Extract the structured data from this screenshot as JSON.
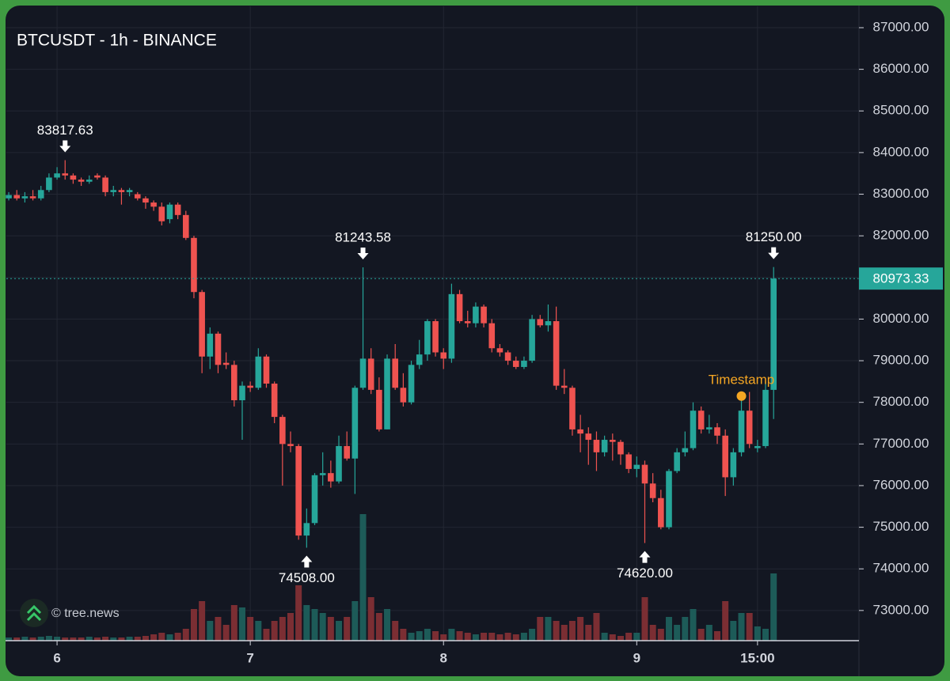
{
  "chart_data": {
    "type": "candlestick",
    "title": "BTCUSDT - 1h - BINANCE",
    "watermark": "© tree.news",
    "x": [
      -6,
      -5,
      -4,
      -3,
      -2,
      -1,
      0,
      1,
      2,
      3,
      4,
      5,
      6,
      7,
      8,
      9,
      10,
      11,
      12,
      13,
      14,
      15,
      16,
      17,
      18,
      19,
      20,
      21,
      22,
      23,
      24,
      25,
      26,
      27,
      28,
      29,
      30,
      31,
      32,
      33,
      34,
      35,
      36,
      37,
      38,
      39,
      40,
      41,
      42,
      43,
      44,
      45,
      46,
      47,
      48,
      49,
      50,
      51,
      52,
      53,
      54,
      55,
      56,
      57,
      58,
      59,
      60,
      61,
      62,
      63,
      64,
      65,
      66,
      67,
      68,
      69,
      70,
      71,
      72,
      73,
      74,
      75,
      76,
      77,
      78,
      79,
      80,
      81,
      82,
      83,
      84,
      85,
      86,
      87,
      88,
      89
    ],
    "open": [
      82900,
      82980,
      82900,
      82950,
      82900,
      83100,
      83400,
      83500,
      83450,
      83350,
      83300,
      83450,
      83400,
      83050,
      83100,
      83050,
      83000,
      82900,
      82800,
      82700,
      82400,
      82750,
      82500,
      81950,
      80650,
      79100,
      79650,
      78950,
      78900,
      78050,
      78400,
      78350,
      79100,
      78450,
      77650,
      77000,
      76950,
      74800,
      75100,
      76250,
      76300,
      76100,
      76950,
      76650,
      78350,
      79050,
      78300,
      77350,
      79050,
      78350,
      78000,
      78900,
      79150,
      79950,
      79200,
      79050,
      80600,
      79950,
      79900,
      80300,
      79900,
      79300,
      79200,
      79000,
      78850,
      79000,
      80000,
      79850,
      79950,
      78400,
      78350,
      77350,
      77250,
      77100,
      76800,
      77100,
      77050,
      76750,
      76400,
      76500,
      76050,
      75700,
      75000,
      76350,
      76800,
      76900,
      77800,
      77350,
      77400,
      77200,
      76200,
      76800,
      77800,
      76900,
      76950,
      78300
    ],
    "high": [
      83050,
      83100,
      83050,
      83100,
      83200,
      83500,
      83650,
      83817.63,
      83500,
      83400,
      83450,
      83500,
      83450,
      83200,
      83150,
      83150,
      83050,
      82950,
      82850,
      82800,
      82800,
      82800,
      82600,
      82000,
      80700,
      79800,
      79700,
      79200,
      79000,
      78500,
      78500,
      79300,
      79150,
      78500,
      77700,
      77300,
      77000,
      75450,
      76300,
      76800,
      76600,
      77200,
      77300,
      78400,
      81243.58,
      79300,
      78600,
      79150,
      79400,
      78700,
      79000,
      79500,
      80000,
      80000,
      79300,
      80850,
      80700,
      80200,
      80400,
      80350,
      80000,
      79400,
      79250,
      79100,
      79100,
      80100,
      80100,
      80350,
      80300,
      78800,
      78400,
      77700,
      77400,
      77300,
      77200,
      77250,
      77100,
      76800,
      76700,
      76600,
      76300,
      75900,
      76400,
      76900,
      77300,
      78000,
      77900,
      77700,
      77500,
      77350,
      76900,
      78100,
      78250,
      77100,
      78500,
      81250
    ],
    "low": [
      82850,
      82850,
      82800,
      82850,
      82850,
      83050,
      83350,
      83350,
      83250,
      83200,
      83250,
      83350,
      82950,
      82950,
      82750,
      82950,
      82850,
      82650,
      82600,
      82250,
      82300,
      82400,
      81900,
      80500,
      78700,
      78800,
      78700,
      78800,
      77900,
      77100,
      78250,
      78300,
      78350,
      77500,
      76000,
      76800,
      74700,
      74508,
      75050,
      76000,
      75950,
      76050,
      76600,
      75800,
      78300,
      78200,
      77300,
      77350,
      78300,
      77900,
      77950,
      78800,
      79000,
      79100,
      78800,
      78950,
      79900,
      79800,
      79800,
      79800,
      79200,
      79100,
      78900,
      78800,
      78800,
      78950,
      79800,
      79700,
      78300,
      78200,
      77200,
      76800,
      76500,
      76350,
      76700,
      76600,
      76500,
      76300,
      76200,
      74620,
      75600,
      74950,
      74950,
      76300,
      76700,
      76850,
      77250,
      77250,
      77000,
      75750,
      76000,
      76700,
      76900,
      76800,
      76900,
      77600
    ],
    "close": [
      82980,
      82900,
      82950,
      82900,
      83100,
      83400,
      83500,
      83450,
      83350,
      83300,
      83350,
      83400,
      83050,
      83100,
      83050,
      83100,
      82900,
      82800,
      82700,
      82350,
      82750,
      82500,
      81950,
      80650,
      79100,
      79650,
      78900,
      78900,
      78050,
      78400,
      78350,
      79100,
      78450,
      77650,
      77000,
      76950,
      74800,
      75100,
      76250,
      76300,
      76100,
      76950,
      76650,
      78350,
      79050,
      78300,
      77350,
      79050,
      78350,
      78000,
      78900,
      79150,
      79950,
      79200,
      79050,
      80600,
      79950,
      79900,
      80300,
      79900,
      79300,
      79200,
      79000,
      78850,
      79000,
      80000,
      79850,
      79950,
      78400,
      78350,
      77350,
      77250,
      77100,
      76800,
      77100,
      77050,
      76750,
      76400,
      76500,
      76050,
      75700,
      75000,
      76350,
      76800,
      76900,
      77800,
      77350,
      77400,
      77200,
      76200,
      76800,
      77800,
      77000,
      76950,
      78300,
      80973.33
    ],
    "volume": [
      4,
      4,
      5,
      4,
      5,
      6,
      5,
      4,
      4,
      4,
      5,
      4,
      5,
      4,
      4,
      5,
      5,
      6,
      8,
      10,
      8,
      10,
      15,
      40,
      50,
      25,
      30,
      20,
      45,
      42,
      30,
      25,
      15,
      25,
      30,
      35,
      70,
      45,
      40,
      35,
      30,
      25,
      30,
      50,
      160,
      55,
      35,
      40,
      25,
      15,
      10,
      12,
      15,
      12,
      8,
      15,
      12,
      10,
      8,
      10,
      10,
      8,
      10,
      8,
      10,
      15,
      30,
      30,
      25,
      20,
      25,
      30,
      20,
      35,
      10,
      8,
      6,
      10,
      10,
      55,
      20,
      15,
      30,
      20,
      30,
      40,
      15,
      20,
      12,
      50,
      25,
      35,
      35,
      18,
      15,
      85
    ],
    "up_color": "#26a69a",
    "down_color": "#ef5350",
    "up_volume_color": "#1d5b58",
    "down_volume_color": "#7b2e33",
    "xlim": [
      -6.3,
      99.6
    ],
    "ylim": [
      72275,
      87513
    ],
    "xticks": [
      {
        "value": 0,
        "label": "6"
      },
      {
        "value": 24,
        "label": "7"
      },
      {
        "value": 48,
        "label": "8"
      },
      {
        "value": 72,
        "label": "9"
      },
      {
        "value": 87,
        "label": "15:00"
      }
    ],
    "yticks": [
      {
        "value": 73000,
        "label": "73000.00"
      },
      {
        "value": 74000,
        "label": "74000.00"
      },
      {
        "value": 75000,
        "label": "75000.00"
      },
      {
        "value": 76000,
        "label": "76000.00"
      },
      {
        "value": 77000,
        "label": "77000.00"
      },
      {
        "value": 78000,
        "label": "78000.00"
      },
      {
        "value": 79000,
        "label": "79000.00"
      },
      {
        "value": 80000,
        "label": "80000.00"
      },
      {
        "value": 81000,
        "label": "81000.00"
      },
      {
        "value": 82000,
        "label": "82000.00"
      },
      {
        "value": 83000,
        "label": "83000.00"
      },
      {
        "value": 84000,
        "label": "84000.00"
      },
      {
        "value": 85000,
        "label": "85000.00"
      },
      {
        "value": 86000,
        "label": "86000.00"
      },
      {
        "value": 87000,
        "label": "87000.00"
      }
    ],
    "grid": true,
    "markers": [
      {
        "x": 1,
        "value": 83817.63,
        "label": "83817.63",
        "side": "high"
      },
      {
        "x": 38,
        "value": 81243.58,
        "label": "81243.58",
        "side": "high"
      },
      {
        "x": 89,
        "value": 81250,
        "label": "81250.00",
        "side": "high"
      },
      {
        "x": 31,
        "value": 74508,
        "label": "74508.00",
        "side": "low"
      },
      {
        "x": 73,
        "value": 74620,
        "label": "74620.00",
        "side": "low"
      }
    ],
    "annotations": [
      {
        "x": 85,
        "y": 78150,
        "label": "Timestamp",
        "color": "#f5a623"
      }
    ],
    "last_price_color": "#26a69a"
  }
}
